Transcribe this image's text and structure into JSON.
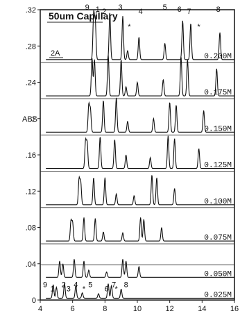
{
  "chart_data": {
    "type": "line",
    "title": "50um Capillary",
    "panel_label": "2A",
    "ylabel": "ABS",
    "xlim": [
      4,
      16
    ],
    "ylim": [
      0,
      0.32
    ],
    "x_ticks": [
      4,
      6,
      8,
      10,
      12,
      14,
      16
    ],
    "y_ticks": [
      {
        "value": 0,
        "label": "0"
      },
      {
        "value": 0.04,
        "label": ".04"
      },
      {
        "value": 0.08,
        "label": ".08"
      },
      {
        "value": 0.12,
        "label": ".12"
      },
      {
        "value": 0.16,
        "label": ".16"
      },
      {
        "value": 0.2,
        "label": ".2"
      },
      {
        "value": 0.24,
        "label": ".24"
      },
      {
        "value": 0.28,
        "label": ".28"
      },
      {
        "value": 0.32,
        "label": ".32"
      }
    ],
    "series": [
      {
        "name": "0.200M",
        "baseline": 0.265,
        "peaks": [
          {
            "x": 7.3,
            "h": 0.05
          },
          {
            "x": 7.4,
            "h": 0.042
          },
          {
            "x": 8.3,
            "h": 0.052
          },
          {
            "x": 9.1,
            "h": 0.048
          },
          {
            "x": 9.4,
            "h": 0.01
          },
          {
            "x": 10.1,
            "h": 0.025
          },
          {
            "x": 11.7,
            "h": 0.018
          },
          {
            "x": 12.8,
            "h": 0.043
          },
          {
            "x": 13.3,
            "h": 0.04
          },
          {
            "x": 15.1,
            "h": 0.03
          }
        ]
      },
      {
        "name": "0.175M",
        "baseline": 0.225,
        "peaks": [
          {
            "x": 7.2,
            "h": 0.042
          },
          {
            "x": 7.35,
            "h": 0.04
          },
          {
            "x": 8.2,
            "h": 0.045
          },
          {
            "x": 9.0,
            "h": 0.04
          },
          {
            "x": 9.3,
            "h": 0.01
          },
          {
            "x": 10.0,
            "h": 0.015
          },
          {
            "x": 11.6,
            "h": 0.018
          },
          {
            "x": 12.7,
            "h": 0.043
          },
          {
            "x": 13.1,
            "h": 0.04
          },
          {
            "x": 14.9,
            "h": 0.03
          }
        ]
      },
      {
        "name": "0.150M",
        "baseline": 0.185,
        "peaks": [
          {
            "x": 7.0,
            "h": 0.03
          },
          {
            "x": 7.1,
            "h": 0.025
          },
          {
            "x": 7.9,
            "h": 0.035
          },
          {
            "x": 8.7,
            "h": 0.038
          },
          {
            "x": 9.4,
            "h": 0.012
          },
          {
            "x": 11.0,
            "h": 0.015
          },
          {
            "x": 12.0,
            "h": 0.033
          },
          {
            "x": 12.4,
            "h": 0.03
          },
          {
            "x": 14.1,
            "h": 0.024
          }
        ]
      },
      {
        "name": "0.125M",
        "baseline": 0.145,
        "peaks": [
          {
            "x": 6.8,
            "h": 0.03
          },
          {
            "x": 6.9,
            "h": 0.028
          },
          {
            "x": 7.7,
            "h": 0.035
          },
          {
            "x": 8.6,
            "h": 0.032
          },
          {
            "x": 9.3,
            "h": 0.015
          },
          {
            "x": 10.8,
            "h": 0.012
          },
          {
            "x": 11.9,
            "h": 0.036
          },
          {
            "x": 12.3,
            "h": 0.033
          },
          {
            "x": 13.8,
            "h": 0.022
          }
        ]
      },
      {
        "name": "0.100M",
        "baseline": 0.105,
        "peaks": [
          {
            "x": 6.4,
            "h": 0.028
          },
          {
            "x": 6.5,
            "h": 0.025
          },
          {
            "x": 7.3,
            "h": 0.03
          },
          {
            "x": 8.0,
            "h": 0.03
          },
          {
            "x": 8.7,
            "h": 0.012
          },
          {
            "x": 9.8,
            "h": 0.01
          },
          {
            "x": 10.9,
            "h": 0.033
          },
          {
            "x": 11.2,
            "h": 0.03
          },
          {
            "x": 12.3,
            "h": 0.018
          }
        ]
      },
      {
        "name": "0.075M",
        "baseline": 0.065,
        "peaks": [
          {
            "x": 5.9,
            "h": 0.022
          },
          {
            "x": 6.0,
            "h": 0.02
          },
          {
            "x": 6.7,
            "h": 0.026
          },
          {
            "x": 7.4,
            "h": 0.025
          },
          {
            "x": 7.9,
            "h": 0.01
          },
          {
            "x": 9.1,
            "h": 0.009
          },
          {
            "x": 10.2,
            "h": 0.026
          },
          {
            "x": 10.4,
            "h": 0.024
          },
          {
            "x": 11.5,
            "h": 0.015
          }
        ]
      },
      {
        "name": "0.050M",
        "baseline": 0.025,
        "peaks": [
          {
            "x": 5.2,
            "h": 0.018
          },
          {
            "x": 5.4,
            "h": 0.015
          },
          {
            "x": 6.1,
            "h": 0.02
          },
          {
            "x": 6.7,
            "h": 0.018
          },
          {
            "x": 7.0,
            "h": 0.008
          },
          {
            "x": 8.1,
            "h": 0.006
          },
          {
            "x": 9.1,
            "h": 0.02
          },
          {
            "x": 9.3,
            "h": 0.018
          },
          {
            "x": 10.1,
            "h": 0.012
          }
        ]
      },
      {
        "name": "0.025M",
        "baseline": 0.002,
        "peaks": [
          {
            "x": 4.8,
            "h": 0.015
          },
          {
            "x": 5.0,
            "h": 0.012
          },
          {
            "x": 5.5,
            "h": 0.016
          },
          {
            "x": 6.2,
            "h": 0.014
          },
          {
            "x": 6.6,
            "h": 0.006
          },
          {
            "x": 7.6,
            "h": 0.005
          },
          {
            "x": 8.2,
            "h": 0.016
          },
          {
            "x": 8.4,
            "h": 0.014
          },
          {
            "x": 9.0,
            "h": 0.01
          }
        ]
      }
    ],
    "peak_labels_top": [
      {
        "label": "9",
        "x": 6.9
      },
      {
        "label": "1",
        "x": 7.55
      },
      {
        "label": "2",
        "x": 7.95
      },
      {
        "label": "3",
        "x": 8.95
      },
      {
        "label": "*",
        "x": 9.5
      },
      {
        "label": "4",
        "x": 10.2
      },
      {
        "label": "5",
        "x": 11.7
      },
      {
        "label": "6",
        "x": 12.6
      },
      {
        "label": "7",
        "x": 13.2
      },
      {
        "label": "*",
        "x": 13.8
      },
      {
        "label": "8",
        "x": 15.0
      }
    ],
    "peak_labels_bottom": [
      {
        "label": "9",
        "x": 4.3
      },
      {
        "label": "1",
        "x": 4.75
      },
      {
        "label": "2",
        "x": 5.45
      },
      {
        "label": "3",
        "x": 5.75
      },
      {
        "label": "4",
        "x": 6.2
      },
      {
        "label": "*",
        "x": 6.7
      },
      {
        "label": "5",
        "x": 7.1
      },
      {
        "label": "6",
        "x": 8.1
      },
      {
        "label": "7",
        "x": 8.55
      },
      {
        "label": "*",
        "x": 8.7
      },
      {
        "label": "8",
        "x": 9.3
      }
    ]
  }
}
